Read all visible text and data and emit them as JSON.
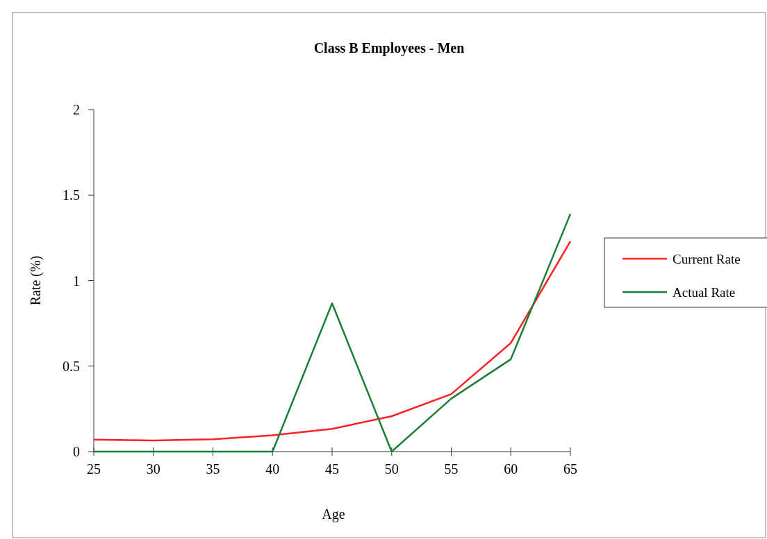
{
  "chart_data": {
    "type": "line",
    "title": "Class B Employees - Men",
    "xlabel": "Age",
    "ylabel": "Rate (%)",
    "x": [
      25,
      30,
      35,
      40,
      45,
      50,
      55,
      60,
      65
    ],
    "series": [
      {
        "name": "Current Rate",
        "color": "#ff2020",
        "values": [
          0.07,
          0.065,
          0.072,
          0.095,
          0.133,
          0.207,
          0.336,
          0.635,
          1.23
        ]
      },
      {
        "name": "Actual Rate",
        "color": "#1a7f37",
        "values": [
          0,
          0,
          0,
          0,
          0.867,
          0,
          0.31,
          0.54,
          1.39
        ]
      }
    ],
    "xlim": [
      25,
      65
    ],
    "xticks": [
      25,
      30,
      35,
      40,
      45,
      50,
      55,
      60,
      65
    ],
    "ylim": [
      0,
      2
    ],
    "yticks": [
      0,
      0.5,
      1,
      1.5,
      2
    ],
    "grid": false,
    "legend": "right",
    "marker": "none",
    "line_style": "solid"
  }
}
